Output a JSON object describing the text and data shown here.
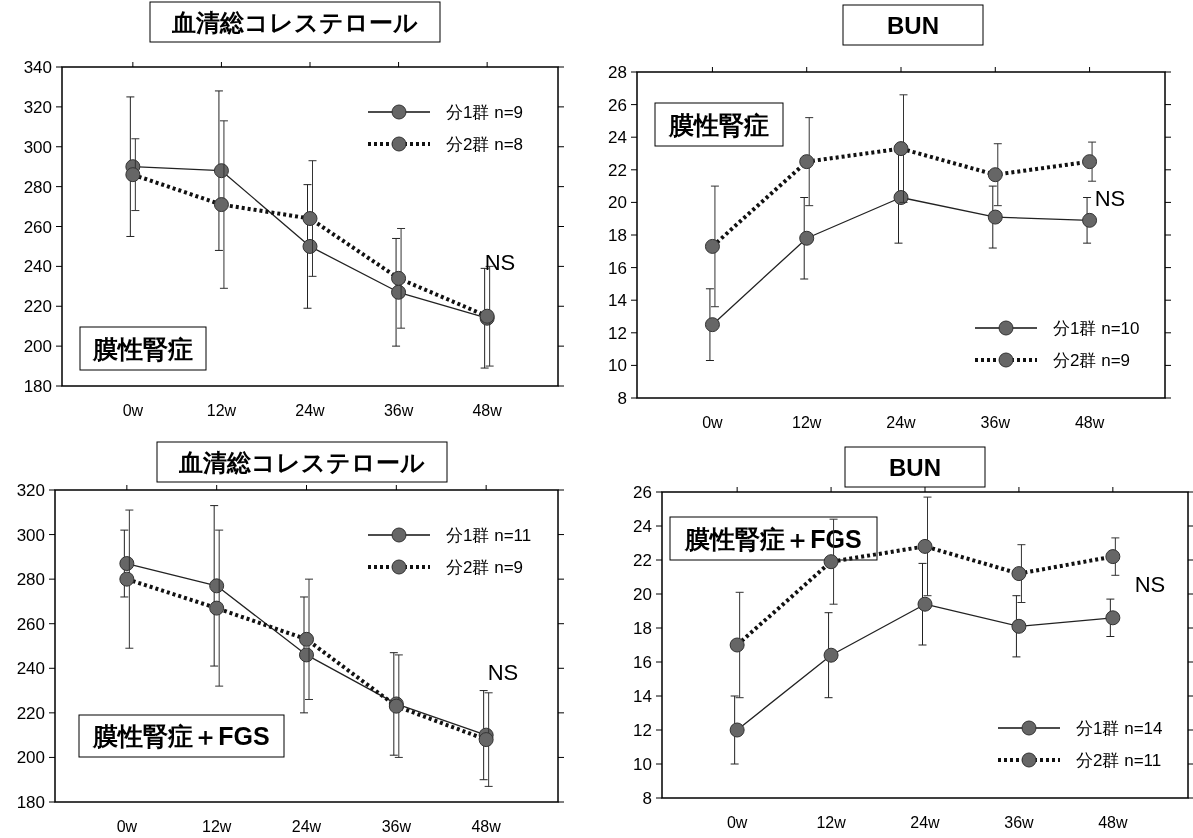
{
  "chart_data": [
    {
      "type": "line",
      "title": "血清総コレステロール",
      "categories": [
        "0w",
        "12w",
        "24w",
        "36w",
        "48w"
      ],
      "ylim": [
        180,
        340
      ],
      "yticks": [
        180,
        200,
        220,
        240,
        260,
        280,
        300,
        320,
        340
      ],
      "marker": "circle",
      "legend": "top right",
      "grid": false,
      "annotations": [
        "膜性腎症",
        "NS"
      ],
      "series": [
        {
          "name": "分1群  n=9",
          "color": "#666666",
          "line_style": "solid",
          "values": [
            290,
            288,
            250,
            227,
            214
          ],
          "errors": [
            35,
            40,
            31,
            27,
            25
          ]
        },
        {
          "name": "分2群  n=8",
          "color": "#666666",
          "line_style": "dotted",
          "values": [
            286,
            271,
            264,
            234,
            215
          ],
          "errors": [
            18,
            42,
            29,
            25,
            25
          ]
        }
      ]
    },
    {
      "type": "line",
      "title": "BUN",
      "categories": [
        "0w",
        "12w",
        "24w",
        "36w",
        "48w"
      ],
      "ylim": [
        8,
        28
      ],
      "yticks": [
        8,
        10,
        12,
        14,
        16,
        18,
        20,
        22,
        24,
        26,
        28
      ],
      "marker": "circle",
      "legend": "bottom right",
      "grid": false,
      "annotations": [
        "膜性腎症",
        "NS"
      ],
      "series": [
        {
          "name": "分1群  n=10",
          "color": "#666666",
          "line_style": "solid",
          "values": [
            12.5,
            17.8,
            20.3,
            19.1,
            18.9
          ],
          "errors": [
            2.2,
            2.5,
            2.8,
            1.9,
            1.4
          ]
        },
        {
          "name": "分2群  n=9",
          "color": "#666666",
          "line_style": "dotted",
          "values": [
            17.3,
            22.5,
            23.3,
            21.7,
            22.5
          ],
          "errors": [
            3.7,
            2.7,
            3.3,
            1.9,
            1.2
          ]
        }
      ]
    },
    {
      "type": "line",
      "title": "血清総コレステロール",
      "categories": [
        "0w",
        "12w",
        "24w",
        "36w",
        "48w"
      ],
      "ylim": [
        180,
        320
      ],
      "yticks": [
        180,
        200,
        220,
        240,
        260,
        280,
        300,
        320
      ],
      "marker": "circle",
      "legend": "top right",
      "grid": false,
      "annotations": [
        "膜性腎症＋FGS",
        "NS"
      ],
      "series": [
        {
          "name": "分1群  n=11",
          "color": "#666666",
          "line_style": "solid",
          "values": [
            287,
            277,
            246,
            224,
            210
          ],
          "errors": [
            15,
            36,
            26,
            23,
            20
          ]
        },
        {
          "name": "分2群  n=9",
          "color": "#666666",
          "line_style": "dotted",
          "values": [
            280,
            267,
            253,
            223,
            208
          ],
          "errors": [
            31,
            35,
            27,
            23,
            21
          ]
        }
      ]
    },
    {
      "type": "line",
      "title": "BUN",
      "categories": [
        "0w",
        "12w",
        "24w",
        "36w",
        "48w"
      ],
      "ylim": [
        8,
        26
      ],
      "yticks": [
        8,
        10,
        12,
        14,
        16,
        18,
        20,
        22,
        24,
        26
      ],
      "marker": "circle",
      "legend": "bottom right",
      "grid": false,
      "annotations": [
        "膜性腎症＋FGS",
        "NS"
      ],
      "series": [
        {
          "name": "分1群  n=14",
          "color": "#666666",
          "line_style": "solid",
          "values": [
            12,
            16.4,
            19.4,
            18.1,
            18.6
          ],
          "errors": [
            2,
            2.5,
            2.4,
            1.8,
            1.1
          ]
        },
        {
          "name": "分2群  n=11",
          "color": "#666666",
          "line_style": "dotted",
          "values": [
            17,
            21.9,
            22.8,
            21.2,
            22.2
          ],
          "errors": [
            3.1,
            2.5,
            2.9,
            1.7,
            1.1
          ]
        }
      ]
    }
  ]
}
